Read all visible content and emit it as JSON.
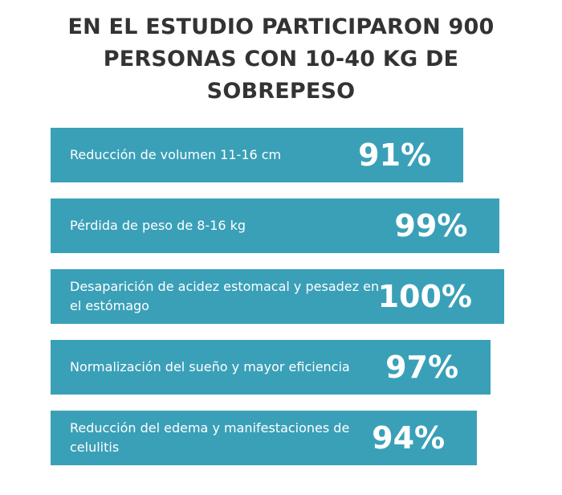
{
  "chart_data": {
    "type": "bar",
    "orientation": "horizontal",
    "title": "EN EL ESTUDIO PARTICIPARON 900 PERSONAS CON 10-40 KG DE SOBREPESO",
    "categories": [
      "Reducción de volumen 11-16 cm",
      "Pérdida de peso de 8-16 kg",
      "Desaparición de acidez estomacal y pesadez en el estómago",
      "Normalización del sueño y mayor eficiencia",
      "Reducción del edema y manifestaciones de celulitis"
    ],
    "values": [
      91,
      99,
      100,
      97,
      94
    ],
    "value_labels": [
      "91%",
      "99%",
      "100%",
      "97%",
      "94%"
    ],
    "color": "#3aa0b8",
    "xlim": [
      0,
      100
    ]
  }
}
